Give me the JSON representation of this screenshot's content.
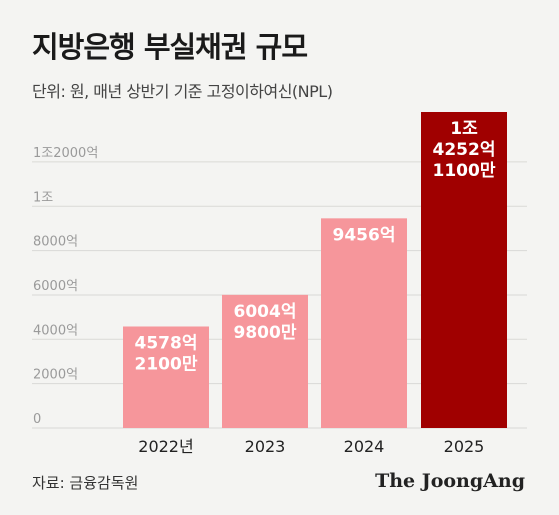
{
  "header": {
    "title": "지방은행 부실채권 규모",
    "subtitle": "단위: 원, 매년 상반기 기준 고정이하여신(NPL)"
  },
  "footer": {
    "source": "자료: 금융감독원",
    "brand": "The JoongAng"
  },
  "colors": {
    "bar_light": "#f6969b",
    "bar_highlight": "#a00000",
    "grid": "#d9d9d6",
    "tick_text": "#9a9a9a",
    "label_text": "#ffffff"
  },
  "chart_data": {
    "type": "bar",
    "categories": [
      "2022년",
      "2023",
      "2024",
      "2025"
    ],
    "values": [
      4578.21,
      6004.98,
      9456,
      14252.11
    ],
    "unit": "억원",
    "data_labels": [
      [
        "4578억",
        "2100만"
      ],
      [
        "6004억",
        "9800만"
      ],
      [
        "9456억"
      ],
      [
        "1조",
        "4252억",
        "1100만"
      ]
    ],
    "highlight_index": 3,
    "y_ticks": [
      0,
      2000,
      4000,
      6000,
      8000,
      10000,
      12000
    ],
    "y_tick_labels": [
      "0",
      "2000억",
      "4000억",
      "6000억",
      "8000억",
      "1조",
      "1조2000억"
    ],
    "ylim": [
      0,
      14252.11
    ],
    "grid": true,
    "legend": "none"
  }
}
